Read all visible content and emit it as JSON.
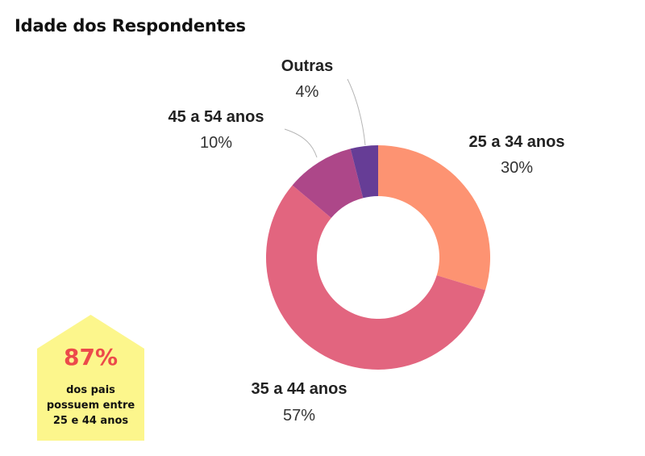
{
  "title": "Idade dos Respondentes",
  "chart_data": {
    "type": "pie",
    "donut": true,
    "title": "Idade dos Respondentes",
    "categories": [
      "25 a 34 anos",
      "35 a 44 anos",
      "45 a 54 anos",
      "Outras"
    ],
    "values": [
      30,
      57,
      10,
      4
    ],
    "value_labels": [
      "30%",
      "57%",
      "10%",
      "4%"
    ],
    "colors": [
      "#fd9372",
      "#e2657f",
      "#ad4789",
      "#663d96"
    ],
    "legend": "none"
  },
  "callout": {
    "value": "87%",
    "text_lines": [
      "dos pais",
      "possuem entre",
      "25 e 44 anos"
    ],
    "bg_color": "#fcf68c",
    "value_color": "#ec4a4a"
  }
}
